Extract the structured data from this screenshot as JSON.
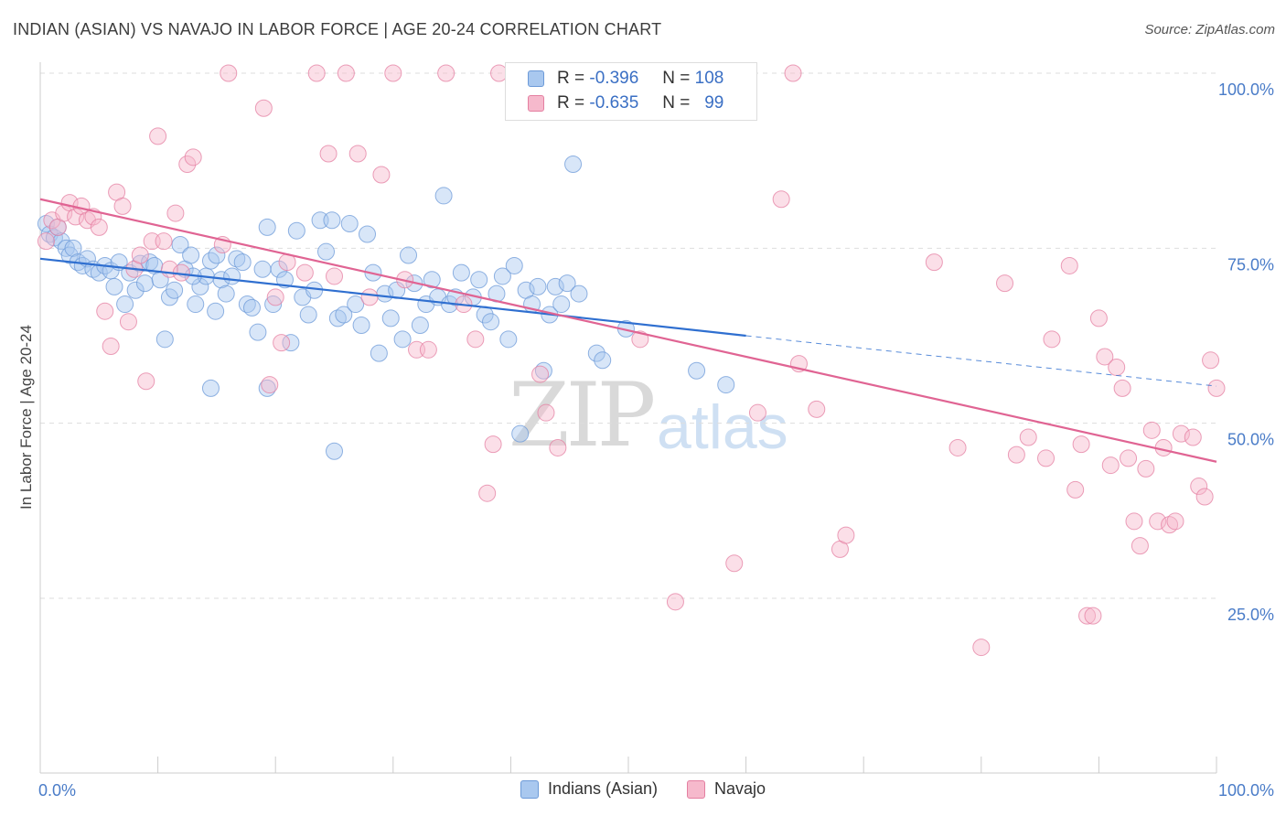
{
  "header": {
    "title": "INDIAN (ASIAN) VS NAVAJO IN LABOR FORCE | AGE 20-24 CORRELATION CHART",
    "source": "Source: ZipAtlas.com"
  },
  "watermark": {
    "part1": "ZIP",
    "part2": "atlas"
  },
  "legend": {
    "r_label": "R =",
    "n_label": "N =",
    "series": [
      {
        "r": "-0.396",
        "n": "108",
        "color": "#a9c8ef",
        "border": "#6c9ad8"
      },
      {
        "r": "-0.635",
        "n": "99",
        "color": "#f6b9cc",
        "border": "#e47fa1"
      }
    ]
  },
  "bottom_legend": [
    "Indians (Asian)",
    "Navajo"
  ],
  "chart_data": {
    "type": "scatter",
    "title": "INDIAN (ASIAN) VS NAVAJO IN LABOR FORCE | AGE 20-24 CORRELATION CHART",
    "xlabel": "",
    "ylabel": "In Labor Force | Age 20-24",
    "xlim": [
      0,
      100
    ],
    "ylim": [
      0,
      105
    ],
    "x_tick_labels": [
      "0.0%",
      "100.0%"
    ],
    "y_ticks": [
      25,
      50,
      75,
      100
    ],
    "y_tick_labels": [
      "25.0%",
      "50.0%",
      "75.0%",
      "100.0%"
    ],
    "grid": true,
    "legend_position": "top-center",
    "series": [
      {
        "name": "Indians (Asian)",
        "color": "#a9c8ef",
        "stroke": "#6c9ad8",
        "trend_color": "#2f6fd0",
        "trend": {
          "x0": 0,
          "y0": 73.5,
          "x1": 60,
          "y1": 62.5,
          "dashed_to_x": 100,
          "dashed_to_y": 55.3
        },
        "points": [
          [
            0.5,
            78.5
          ],
          [
            0.8,
            77
          ],
          [
            1.2,
            76.5
          ],
          [
            1.5,
            78
          ],
          [
            1.8,
            76
          ],
          [
            2.2,
            75
          ],
          [
            2.5,
            74
          ],
          [
            2.8,
            75
          ],
          [
            3.2,
            73
          ],
          [
            3.6,
            72.5
          ],
          [
            4,
            73.5
          ],
          [
            4.5,
            72
          ],
          [
            5,
            71.5
          ],
          [
            5.5,
            72.5
          ],
          [
            6,
            71.8
          ],
          [
            6.3,
            69.5
          ],
          [
            6.7,
            73
          ],
          [
            7.2,
            67
          ],
          [
            7.6,
            71.5
          ],
          [
            8.1,
            69
          ],
          [
            8.5,
            72.8
          ],
          [
            8.9,
            70
          ],
          [
            9.3,
            73
          ],
          [
            9.7,
            72.5
          ],
          [
            10.2,
            70.5
          ],
          [
            10.6,
            62
          ],
          [
            11,
            68
          ],
          [
            11.4,
            69
          ],
          [
            11.9,
            75.5
          ],
          [
            12.3,
            72
          ],
          [
            12.8,
            74
          ],
          [
            13.2,
            67
          ],
          [
            13.6,
            69.5
          ],
          [
            14.1,
            71
          ],
          [
            14.5,
            73.2
          ],
          [
            14.9,
            66
          ],
          [
            15.4,
            70.5
          ],
          [
            15.8,
            68.5
          ],
          [
            16.3,
            71
          ],
          [
            16.7,
            73.5
          ],
          [
            17.2,
            73
          ],
          [
            17.6,
            67
          ],
          [
            18,
            66.5
          ],
          [
            18.5,
            63
          ],
          [
            18.9,
            72
          ],
          [
            19.3,
            78
          ],
          [
            19.8,
            67
          ],
          [
            20.3,
            72
          ],
          [
            20.8,
            70.5
          ],
          [
            21.3,
            61.5
          ],
          [
            21.8,
            77.5
          ],
          [
            22.3,
            68
          ],
          [
            22.8,
            65.5
          ],
          [
            23.3,
            69
          ],
          [
            23.8,
            79
          ],
          [
            24.3,
            74.5
          ],
          [
            24.8,
            79
          ],
          [
            25.3,
            65
          ],
          [
            25.8,
            65.5
          ],
          [
            26.3,
            78.5
          ],
          [
            26.8,
            67
          ],
          [
            27.3,
            64
          ],
          [
            27.8,
            77
          ],
          [
            28.3,
            71.5
          ],
          [
            28.8,
            60
          ],
          [
            29.3,
            68.5
          ],
          [
            29.8,
            65
          ],
          [
            30.3,
            69
          ],
          [
            30.8,
            62
          ],
          [
            31.3,
            74
          ],
          [
            31.8,
            70
          ],
          [
            32.3,
            64
          ],
          [
            32.8,
            67
          ],
          [
            33.3,
            70.5
          ],
          [
            33.8,
            68
          ],
          [
            34.3,
            82.5
          ],
          [
            34.8,
            67
          ],
          [
            35.3,
            68
          ],
          [
            35.8,
            71.5
          ],
          [
            36.8,
            68
          ],
          [
            37.3,
            70.5
          ],
          [
            37.8,
            65.5
          ],
          [
            38.3,
            64.5
          ],
          [
            38.8,
            68.5
          ],
          [
            39.3,
            71
          ],
          [
            39.8,
            62
          ],
          [
            40.3,
            72.5
          ],
          [
            40.8,
            48.5
          ],
          [
            41.3,
            69
          ],
          [
            41.8,
            67
          ],
          [
            42.3,
            69.5
          ],
          [
            42.8,
            57.5
          ],
          [
            43.3,
            65.5
          ],
          [
            43.8,
            69.5
          ],
          [
            44.3,
            67
          ],
          [
            44.8,
            70
          ],
          [
            45.3,
            87
          ],
          [
            45.8,
            68.5
          ],
          [
            47.3,
            60
          ],
          [
            47.8,
            59
          ],
          [
            49.8,
            63.5
          ],
          [
            55.8,
            57.5
          ],
          [
            58.3,
            55.5
          ],
          [
            25,
            46
          ],
          [
            14.5,
            55
          ],
          [
            19.3,
            55
          ],
          [
            15,
            74
          ],
          [
            13,
            71
          ]
        ]
      },
      {
        "name": "Navajo",
        "color": "#f6b9cc",
        "stroke": "#e47fa1",
        "trend_color": "#e06493",
        "trend": {
          "x0": 0,
          "y0": 82,
          "x1": 100,
          "y1": 44.5
        },
        "points": [
          [
            0.5,
            76
          ],
          [
            1,
            79
          ],
          [
            1.5,
            78
          ],
          [
            2,
            80
          ],
          [
            2.5,
            81.5
          ],
          [
            3,
            79.5
          ],
          [
            3.5,
            81
          ],
          [
            4,
            79
          ],
          [
            4.5,
            79.5
          ],
          [
            5,
            78
          ],
          [
            5.5,
            66
          ],
          [
            6,
            61
          ],
          [
            6.5,
            83
          ],
          [
            7,
            81
          ],
          [
            7.5,
            64.5
          ],
          [
            8,
            72
          ],
          [
            8.5,
            74
          ],
          [
            9,
            56
          ],
          [
            9.5,
            76
          ],
          [
            10,
            91
          ],
          [
            10.5,
            76
          ],
          [
            11,
            72
          ],
          [
            11.5,
            80
          ],
          [
            12,
            71.5
          ],
          [
            12.5,
            87
          ],
          [
            13,
            88
          ],
          [
            15.5,
            75.5
          ],
          [
            16,
            100
          ],
          [
            19,
            95
          ],
          [
            19.5,
            55.5
          ],
          [
            20,
            68
          ],
          [
            20.5,
            61.5
          ],
          [
            21,
            73
          ],
          [
            22.5,
            71.5
          ],
          [
            23.5,
            100
          ],
          [
            24.5,
            88.5
          ],
          [
            25,
            71
          ],
          [
            26,
            100
          ],
          [
            27,
            88.5
          ],
          [
            28,
            68
          ],
          [
            29,
            85.5
          ],
          [
            30,
            100
          ],
          [
            31,
            70.5
          ],
          [
            32,
            60.5
          ],
          [
            33,
            60.5
          ],
          [
            34.5,
            100
          ],
          [
            36,
            67
          ],
          [
            37,
            62
          ],
          [
            38,
            40
          ],
          [
            38.5,
            47
          ],
          [
            39,
            100
          ],
          [
            42.5,
            57
          ],
          [
            43,
            51.5
          ],
          [
            44,
            46.5
          ],
          [
            46,
            100
          ],
          [
            51,
            62
          ],
          [
            52,
            100
          ],
          [
            54,
            24.5
          ],
          [
            58,
            100
          ],
          [
            59,
            30
          ],
          [
            60,
            100
          ],
          [
            61,
            51.5
          ],
          [
            63,
            82
          ],
          [
            64,
            100
          ],
          [
            64.5,
            58.5
          ],
          [
            66,
            52
          ],
          [
            68,
            32
          ],
          [
            68.5,
            34
          ],
          [
            76,
            73
          ],
          [
            78,
            46.5
          ],
          [
            80,
            18
          ],
          [
            82,
            70
          ],
          [
            83,
            45.5
          ],
          [
            84,
            48
          ],
          [
            85.5,
            45
          ],
          [
            86,
            62
          ],
          [
            87.5,
            72.5
          ],
          [
            88,
            40.5
          ],
          [
            88.5,
            47
          ],
          [
            89,
            22.5
          ],
          [
            89.5,
            22.5
          ],
          [
            90,
            65
          ],
          [
            90.5,
            59.5
          ],
          [
            91,
            44
          ],
          [
            91.5,
            58
          ],
          [
            92,
            55
          ],
          [
            92.5,
            45
          ],
          [
            93,
            36
          ],
          [
            93.5,
            32.5
          ],
          [
            94,
            43.5
          ],
          [
            94.5,
            49
          ],
          [
            95,
            36
          ],
          [
            95.5,
            46.5
          ],
          [
            96,
            35.5
          ],
          [
            96.5,
            36
          ],
          [
            97,
            48.5
          ],
          [
            98,
            48
          ],
          [
            98.5,
            41
          ],
          [
            99,
            39.5
          ],
          [
            99.5,
            59
          ],
          [
            100,
            55
          ]
        ]
      }
    ]
  }
}
